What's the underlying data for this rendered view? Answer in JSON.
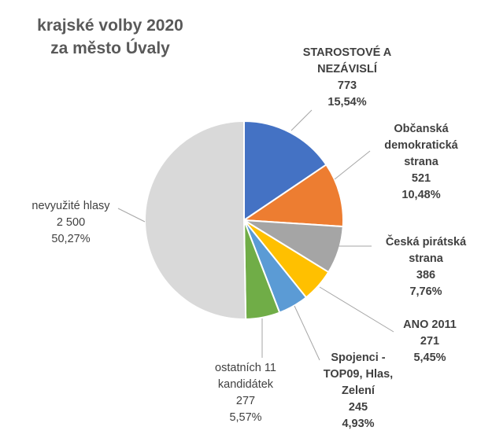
{
  "chart_data": {
    "type": "pie",
    "title": [
      "krajské volby 2020",
      "za město Úvaly"
    ],
    "slices": [
      {
        "name": [
          "STAROSTOVÉ A",
          "NEZÁVISLÍ"
        ],
        "value": 773,
        "value_label": "773",
        "percent_label": "15,54%",
        "color": "#4472C4",
        "bold": true
      },
      {
        "name": [
          "Občanská",
          "demokratická",
          "strana"
        ],
        "value": 521,
        "value_label": "521",
        "percent_label": "10,48%",
        "color": "#ED7D31",
        "bold": true
      },
      {
        "name": [
          "Česká pirátská",
          "strana"
        ],
        "value": 386,
        "value_label": "386",
        "percent_label": "7,76%",
        "color": "#A5A5A5",
        "bold": true
      },
      {
        "name": [
          "ANO 2011"
        ],
        "value": 271,
        "value_label": "271",
        "percent_label": "5,45%",
        "color": "#FFC000",
        "bold": true
      },
      {
        "name": [
          "Spojenci -",
          "TOP09, Hlas,",
          "Zelení"
        ],
        "value": 245,
        "value_label": "245",
        "percent_label": "4,93%",
        "color": "#5B9BD5",
        "bold": true
      },
      {
        "name": [
          "ostatních 11",
          "kandidátek"
        ],
        "value": 277,
        "value_label": "277",
        "percent_label": "5,57%",
        "color": "#70AD47",
        "bold": false
      },
      {
        "name": [
          "nevyužité hlasy"
        ],
        "value": 2500,
        "value_label": "2 500",
        "percent_label": "50,27%",
        "color": "#D9D9D9",
        "bold": false
      }
    ],
    "legend": "none"
  }
}
